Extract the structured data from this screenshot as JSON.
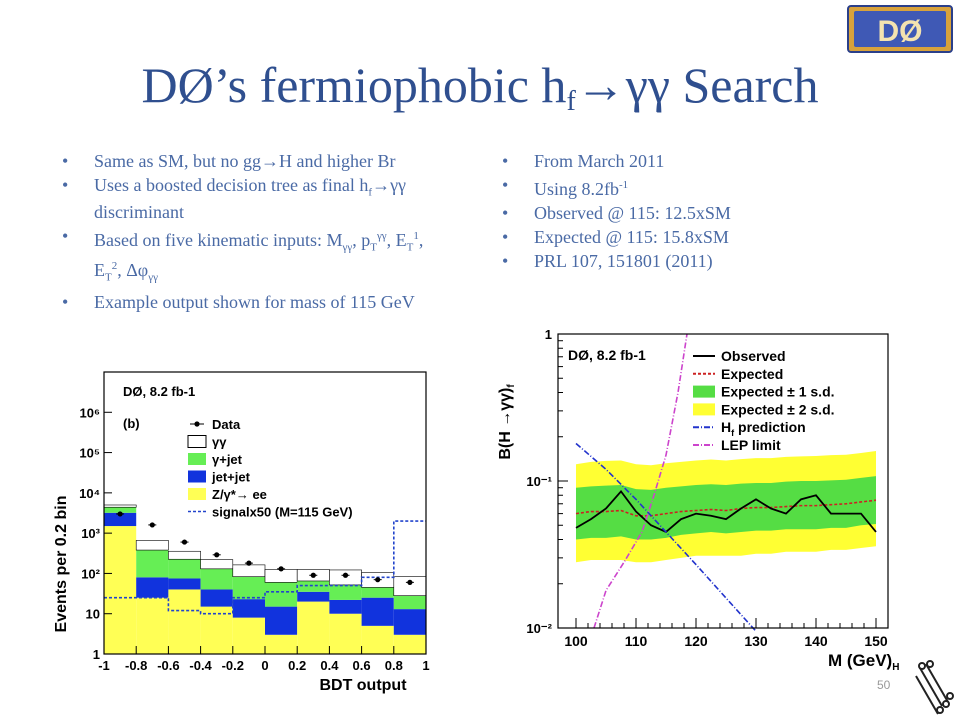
{
  "slide": {
    "title_main": "DØ’s fermiophobic h",
    "title_sub": "f",
    "title_end": "→γγ Search",
    "page_number": "50",
    "logo_text": "DØ"
  },
  "left_bullets": [
    {
      "parts": [
        "Same as SM, but no gg",
        "→",
        "H and higher Br"
      ]
    },
    {
      "parts": [
        "Uses a boosted decision tree as final h",
        "f",
        "→",
        "γγ discriminant"
      ]
    },
    {
      "parts": [
        "Based on five kinematic inputs: M",
        "γγ",
        ", p",
        "T",
        "γγ",
        ", E",
        "T",
        "1",
        ", E",
        "T",
        "2",
        ", Δφ",
        "γγ"
      ]
    },
    {
      "parts": [
        "Example output shown for mass of 115 GeV"
      ]
    }
  ],
  "right_bullets": [
    {
      "text": "From March 2011"
    },
    {
      "text": "Using 8.2fb",
      "sup": "-1"
    },
    {
      "text": "Observed @ 115: 12.5xSM"
    },
    {
      "text": "Expected @ 115: 15.8xSM"
    },
    {
      "text": "PRL 107, 151801 (2011)"
    }
  ],
  "chart_data": [
    {
      "type": "bar",
      "title": "DØ, 8.2 fb-1",
      "panel_label": "(b)",
      "xlabel": "BDT output",
      "ylabel": "Events per 0.2 bin",
      "x_ticks": [
        "-1",
        "-0.8",
        "-0.6",
        "-0.4",
        "-0.2",
        "0",
        "0.2",
        "0.4",
        "0.6",
        "0.8",
        "1"
      ],
      "y_ticks": [
        "1",
        "10",
        "10²",
        "10³",
        "10⁴",
        "10⁵",
        "10⁶"
      ],
      "ylim": [
        1,
        10000000
      ],
      "log_y": true,
      "categories": [
        "-1",
        "-0.8",
        "-0.6",
        "-0.4",
        "-0.2",
        "0",
        "0.2",
        "0.4",
        "0.6",
        "0.8"
      ],
      "series": [
        {
          "name": "Data",
          "style": "points",
          "color": "#000000",
          "values": [
            3000,
            1600,
            600,
            290,
            180,
            130,
            90,
            90,
            70,
            60
          ]
        },
        {
          "name": "γγ",
          "style": "stack",
          "color": "#ffffff",
          "values": [
            600,
            280,
            130,
            90,
            80,
            65,
            60,
            70,
            60,
            55
          ]
        },
        {
          "name": "γ+jet",
          "style": "stack",
          "color": "#66ee55",
          "values": [
            1200,
            300,
            150,
            90,
            60,
            45,
            30,
            30,
            20,
            15
          ]
        },
        {
          "name": "jet+jet",
          "style": "stack",
          "color": "#1133dd",
          "values": [
            1700,
            55,
            35,
            25,
            15,
            12,
            15,
            12,
            20,
            10
          ]
        },
        {
          "name": "Z/γ*→ ee",
          "style": "stack",
          "color": "#ffff55",
          "values": [
            1500,
            25,
            40,
            15,
            8,
            3,
            20,
            10,
            5,
            3
          ]
        },
        {
          "name": "signalx50 (M=115 GeV)",
          "style": "dotted-step",
          "color": "#2244cc",
          "values": [
            25,
            25,
            12,
            10,
            25,
            35,
            50,
            50,
            80,
            2000
          ]
        }
      ]
    },
    {
      "type": "line",
      "title": "DØ, 8.2 fb-1",
      "xlabel": "M  (GeV)",
      "xlabel_sub": "H",
      "ylabel": "B(H →γγ)",
      "ylabel_sub": "f",
      "xlim": [
        97,
        152
      ],
      "ylim": [
        0.01,
        1
      ],
      "log_y": true,
      "x_ticks": [
        "100",
        "110",
        "120",
        "130",
        "140",
        "150"
      ],
      "y_ticks": [
        "10⁻²",
        "10⁻¹",
        "1"
      ],
      "x": [
        100,
        102.5,
        105,
        107.5,
        110,
        112.5,
        115,
        117.5,
        120,
        122.5,
        125,
        127.5,
        130,
        132.5,
        135,
        137.5,
        140,
        142.5,
        145,
        147.5,
        150
      ],
      "series": [
        {
          "name": "Observed",
          "color": "#000000",
          "values": [
            0.048,
            0.055,
            0.065,
            0.085,
            0.062,
            0.05,
            0.045,
            0.055,
            0.06,
            0.058,
            0.055,
            0.065,
            0.075,
            0.065,
            0.06,
            0.075,
            0.08,
            0.06,
            0.06,
            0.06,
            0.045
          ]
        },
        {
          "name": "Expected",
          "color": "#cc2222",
          "values": [
            0.06,
            0.062,
            0.062,
            0.063,
            0.058,
            0.058,
            0.06,
            0.062,
            0.063,
            0.064,
            0.063,
            0.065,
            0.066,
            0.066,
            0.067,
            0.068,
            0.068,
            0.069,
            0.07,
            0.072,
            0.074
          ]
        },
        {
          "name": "Expected ± 1 s.d.",
          "color": "#55dd44",
          "lower": [
            0.04,
            0.041,
            0.041,
            0.042,
            0.04,
            0.04,
            0.041,
            0.043,
            0.044,
            0.045,
            0.044,
            0.045,
            0.046,
            0.046,
            0.047,
            0.047,
            0.047,
            0.048,
            0.048,
            0.05,
            0.051
          ],
          "upper": [
            0.09,
            0.092,
            0.093,
            0.094,
            0.088,
            0.087,
            0.09,
            0.092,
            0.094,
            0.095,
            0.094,
            0.096,
            0.097,
            0.097,
            0.099,
            0.1,
            0.1,
            0.101,
            0.102,
            0.105,
            0.108
          ]
        },
        {
          "name": "Expected ± 2 s.d.",
          "color": "#ffff33",
          "lower": [
            0.028,
            0.029,
            0.029,
            0.029,
            0.028,
            0.028,
            0.029,
            0.03,
            0.031,
            0.031,
            0.031,
            0.031,
            0.032,
            0.032,
            0.033,
            0.033,
            0.033,
            0.034,
            0.034,
            0.035,
            0.036
          ],
          "upper": [
            0.13,
            0.135,
            0.137,
            0.138,
            0.13,
            0.128,
            0.132,
            0.135,
            0.138,
            0.14,
            0.138,
            0.141,
            0.143,
            0.143,
            0.146,
            0.147,
            0.148,
            0.15,
            0.151,
            0.155,
            0.16
          ]
        },
        {
          "name": "H prediction",
          "name_sub": "f",
          "color": "#2233cc",
          "points": [
            [
              100,
              0.18
            ],
            [
              105,
              0.12
            ],
            [
              110,
              0.075
            ],
            [
              115,
              0.045
            ],
            [
              120,
              0.027
            ],
            [
              125,
              0.016
            ],
            [
              130,
              0.0095
            ]
          ]
        },
        {
          "name": "LEP limit",
          "color": "#cc44cc",
          "points": [
            [
              103,
              0.01
            ],
            [
              105,
              0.018
            ],
            [
              108,
              0.028
            ],
            [
              111,
              0.045
            ],
            [
              113,
              0.08
            ],
            [
              115,
              0.15
            ],
            [
              117,
              0.4
            ],
            [
              118.5,
              1.0
            ]
          ]
        }
      ]
    }
  ]
}
